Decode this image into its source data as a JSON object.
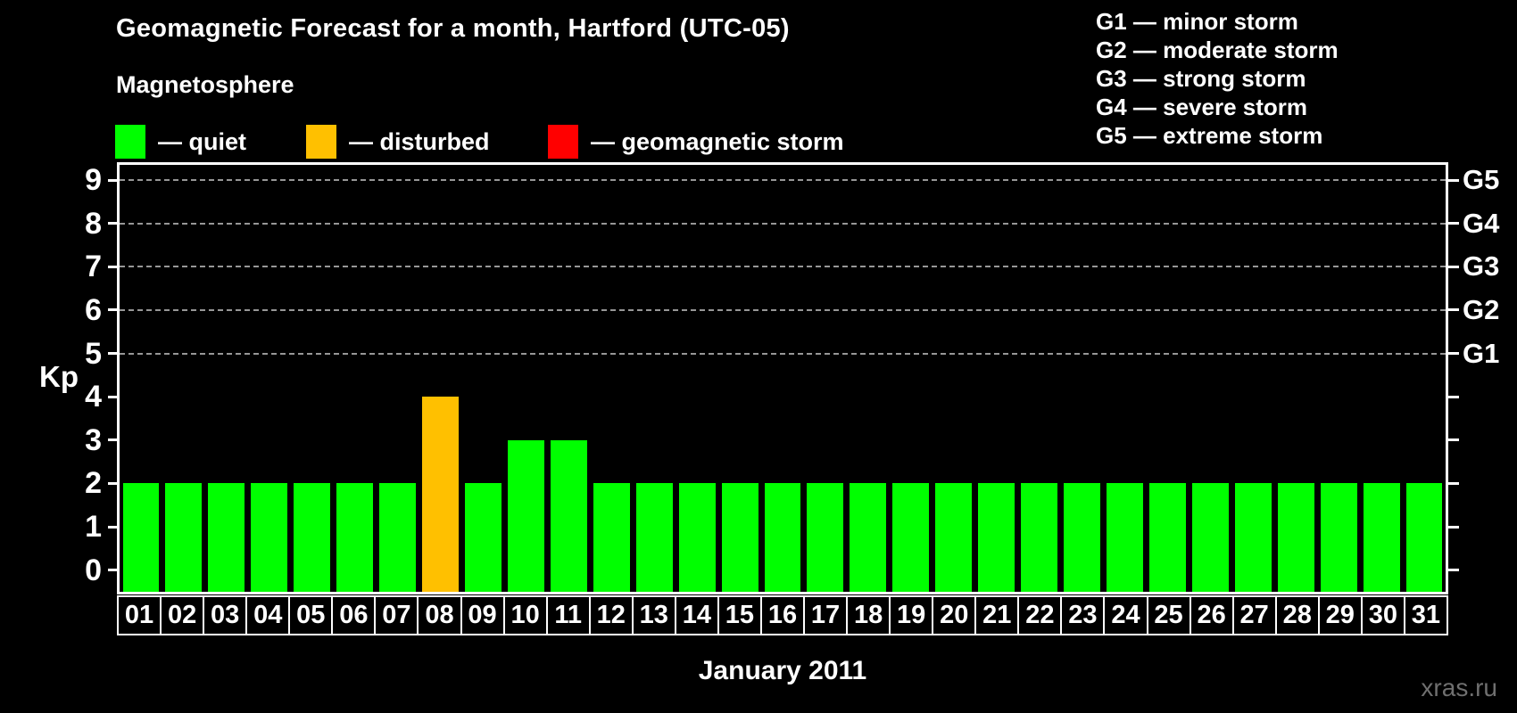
{
  "header": {
    "title": "Geomagnetic Forecast for a month, Hartford (UTC-05)",
    "subtitle": "Magnetosphere"
  },
  "legend": {
    "items": [
      {
        "name": "quiet",
        "label": "— quiet",
        "color": "#00ff00"
      },
      {
        "name": "disturbed",
        "label": "— disturbed",
        "color": "#ffc000"
      },
      {
        "name": "storm",
        "label": "— geomagnetic storm",
        "color": "#ff0000"
      }
    ]
  },
  "g_scale_legend": {
    "items": [
      "G1 — minor storm",
      "G2 — moderate storm",
      "G3 — strong storm",
      "G4 — severe storm",
      "G5 — extreme storm"
    ]
  },
  "chart_data": {
    "type": "bar",
    "title": "Geomagnetic Forecast for a month, Hartford (UTC-05)",
    "xlabel": "January 2011",
    "ylabel": "Kp",
    "ylim": [
      -0.5,
      9.35
    ],
    "categories": [
      "01",
      "02",
      "03",
      "04",
      "05",
      "06",
      "07",
      "08",
      "09",
      "10",
      "11",
      "12",
      "13",
      "14",
      "15",
      "16",
      "17",
      "18",
      "19",
      "20",
      "21",
      "22",
      "23",
      "24",
      "25",
      "26",
      "27",
      "28",
      "29",
      "30",
      "31"
    ],
    "values": [
      2,
      2,
      2,
      2,
      2,
      2,
      2,
      4,
      2,
      3,
      3,
      2,
      2,
      2,
      2,
      2,
      2,
      2,
      2,
      2,
      2,
      2,
      2,
      2,
      2,
      2,
      2,
      2,
      2,
      2,
      2
    ],
    "bar_colors": [
      "#00ff00",
      "#00ff00",
      "#00ff00",
      "#00ff00",
      "#00ff00",
      "#00ff00",
      "#00ff00",
      "#ffc000",
      "#00ff00",
      "#00ff00",
      "#00ff00",
      "#00ff00",
      "#00ff00",
      "#00ff00",
      "#00ff00",
      "#00ff00",
      "#00ff00",
      "#00ff00",
      "#00ff00",
      "#00ff00",
      "#00ff00",
      "#00ff00",
      "#00ff00",
      "#00ff00",
      "#00ff00",
      "#00ff00",
      "#00ff00",
      "#00ff00",
      "#00ff00",
      "#00ff00",
      "#00ff00"
    ],
    "y_ticks": [
      0,
      1,
      2,
      3,
      4,
      5,
      6,
      7,
      8,
      9
    ],
    "gridlines": [
      5,
      6,
      7,
      8,
      9
    ],
    "right_axis": {
      "ticks": [
        0,
        1,
        2,
        3,
        4,
        5,
        6,
        7,
        8,
        9
      ],
      "labels": [
        {
          "level": 5,
          "text": "G1"
        },
        {
          "level": 6,
          "text": "G2"
        },
        {
          "level": 7,
          "text": "G3"
        },
        {
          "level": 8,
          "text": "G4"
        },
        {
          "level": 9,
          "text": "G5"
        }
      ]
    },
    "grid": "dashed horizontal lines at G1–G5 levels only",
    "legend_position": "top-left"
  },
  "watermark": "xras.ru",
  "colors": {
    "background": "#000000",
    "axis": "#ffffff",
    "grid": "#979797",
    "text": "#ffffff",
    "quiet": "#00ff00",
    "disturbed": "#ffc000",
    "storm": "#ff0000",
    "watermark": "#6f6f6f"
  }
}
